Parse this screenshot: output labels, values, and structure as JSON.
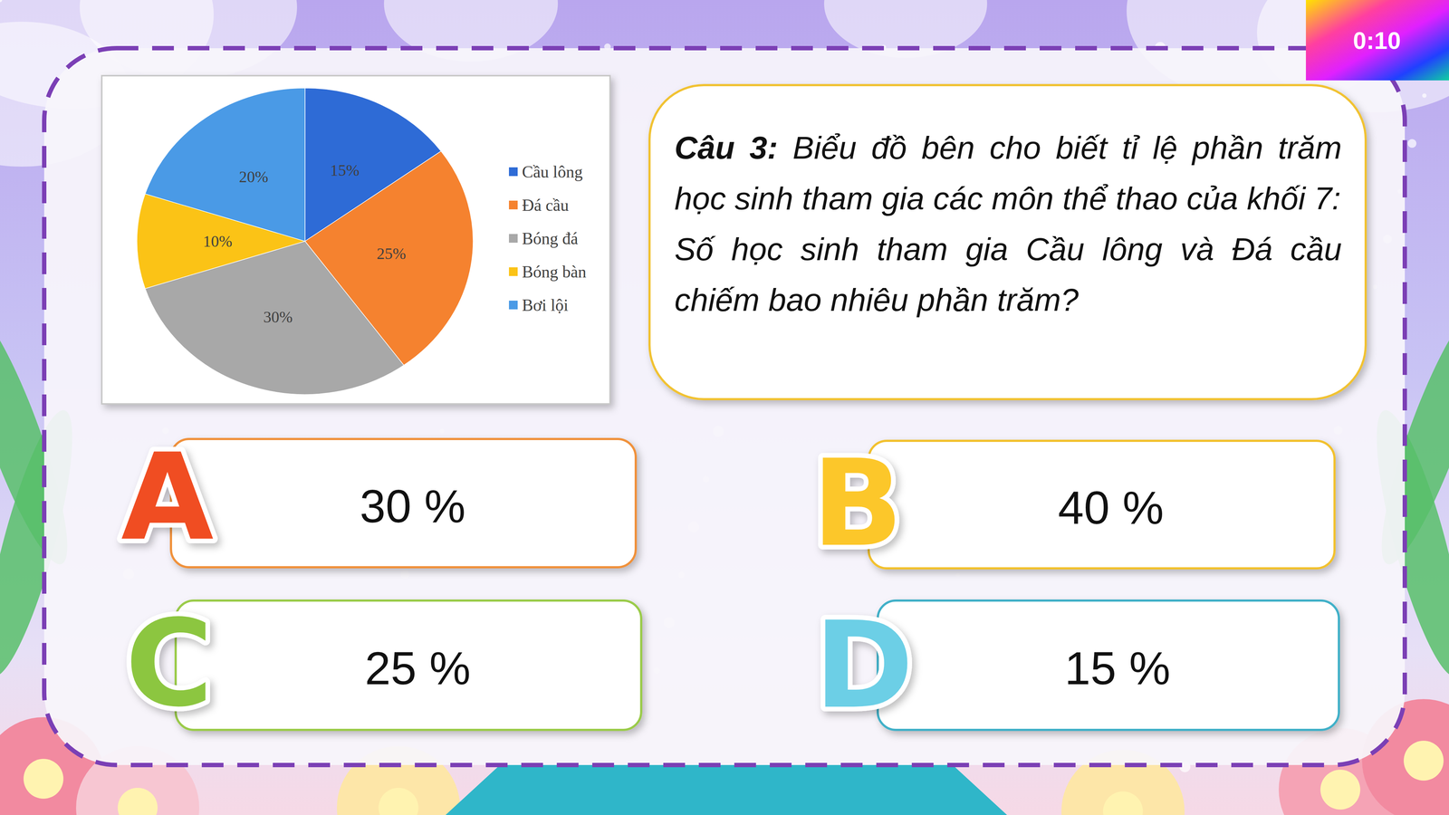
{
  "timer": "0:10",
  "chart_data": {
    "type": "pie",
    "categories": [
      "Cầu lông",
      "Đá cầu",
      "Bóng đá",
      "Bóng bàn",
      "Bơi lội"
    ],
    "values": [
      15,
      25,
      30,
      10,
      20
    ],
    "value_labels": [
      "15%",
      "25%",
      "30%",
      "10%",
      "20%"
    ],
    "colors": [
      "#2e6bd6",
      "#f5822f",
      "#a8a8a8",
      "#fbc316",
      "#4a9ae6"
    ],
    "data_labels": true,
    "legend": "right"
  },
  "question": {
    "number": "Câu 3:",
    "text": "Biểu đồ bên cho biết tỉ lệ phần trăm học sinh tham gia các môn thể thao của khối 7:",
    "prompt": "Số học sinh tham gia Cầu lông và Đá cầu chiếm bao nhiêu phần trăm?"
  },
  "answers": [
    {
      "letter": "A",
      "text": "30 %"
    },
    {
      "letter": "B",
      "text": "40 %"
    },
    {
      "letter": "C",
      "text": "25 %"
    },
    {
      "letter": "D",
      "text": "15 %"
    }
  ]
}
